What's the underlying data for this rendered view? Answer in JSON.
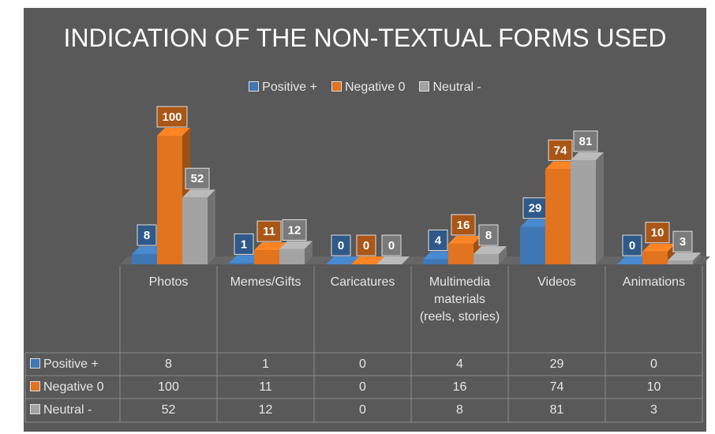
{
  "chart_data": {
    "type": "bar3d",
    "title": "INDICATION OF THE NON-TEXTUAL FORMS USED",
    "categories": [
      "Photos",
      "Memes/Gifts",
      "Caricatures",
      "Multimedia materials (reels, stories)",
      "Videos",
      "Animations"
    ],
    "series": [
      {
        "name": "Positive +",
        "color": "#3f77b5",
        "values": [
          8,
          1,
          0,
          4,
          29,
          0
        ]
      },
      {
        "name": "Negative 0",
        "color": "#e2731f",
        "values": [
          100,
          11,
          0,
          16,
          74,
          10
        ]
      },
      {
        "name": "Neutral -",
        "color": "#a3a3a3",
        "values": [
          52,
          12,
          0,
          8,
          81,
          3
        ]
      }
    ],
    "legend": "top",
    "data_table": true
  }
}
